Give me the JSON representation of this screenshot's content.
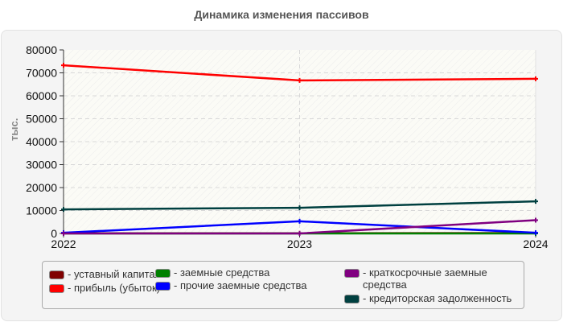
{
  "chart_data": {
    "type": "line",
    "title": "Динамика изменения пассивов",
    "xlabel": "",
    "ylabel": "тыс.",
    "categories": [
      "2022",
      "2023",
      "2024"
    ],
    "ylim": [
      0,
      80000
    ],
    "yticks": [
      0,
      10000,
      20000,
      30000,
      40000,
      50000,
      60000,
      70000,
      80000
    ],
    "grid": true,
    "legend_position": "bottom",
    "series": [
      {
        "name": "уставный капитал",
        "color": "#800000",
        "values": [
          100,
          100,
          200
        ]
      },
      {
        "name": "прибыль (убыток)",
        "color": "#ff0000",
        "values": [
          73300,
          66700,
          67400
        ]
      },
      {
        "name": "заемные средства",
        "color": "#008000",
        "values": [
          0,
          0,
          0
        ]
      },
      {
        "name": "прочие заемные средства",
        "color": "#0000ff",
        "values": [
          300,
          5300,
          300
        ]
      },
      {
        "name": "краткосрочные заемные средства",
        "color": "#800080",
        "values": [
          0,
          0,
          5800
        ]
      },
      {
        "name": "кредиторская задолженность",
        "color": "#004040",
        "values": [
          10500,
          11200,
          14000
        ]
      }
    ]
  },
  "legend": {
    "items": [
      {
        "label": "- уставный капитал",
        "color": "#800000"
      },
      {
        "label": "- прибыль (убыток)",
        "color": "#ff0000"
      },
      {
        "label": "- заемные средства",
        "color": "#008000"
      },
      {
        "label": "- прочие заемные средства",
        "color": "#0000ff"
      },
      {
        "label": "- краткосрочные заемные средства",
        "color": "#800080"
      },
      {
        "label": "- кредиторская задолженность",
        "color": "#004040"
      }
    ]
  }
}
